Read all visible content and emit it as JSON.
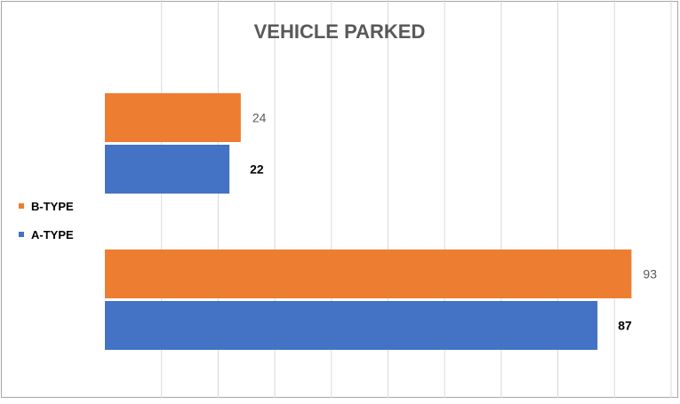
{
  "chart_data": {
    "type": "bar",
    "orientation": "horizontal",
    "title": "VEHICLE PARKED",
    "categories": [
      "",
      ""
    ],
    "series": [
      {
        "name": "B-TYPE",
        "values": [
          24,
          93
        ],
        "color": "#ED7D31",
        "label_bold": false
      },
      {
        "name": "A-TYPE",
        "values": [
          22,
          87
        ],
        "color": "#4472C4",
        "label_bold": true
      }
    ],
    "xlim": [
      0,
      100
    ],
    "grid": true,
    "legend_position": "left"
  }
}
